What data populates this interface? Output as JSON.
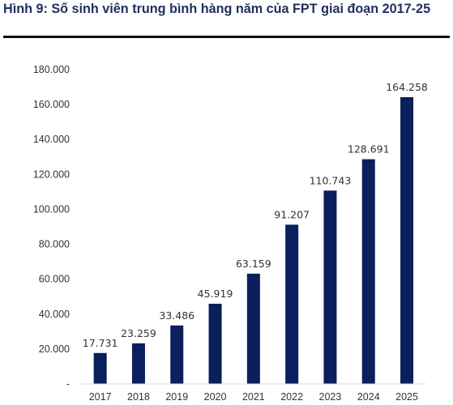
{
  "title": "Hình 9: Số sinh viên trung bình hàng năm của FPT giai đoạn 2017-25",
  "chart_data": {
    "type": "bar",
    "categories": [
      "2017",
      "2018",
      "2019",
      "2020",
      "2021",
      "2022",
      "2023",
      "2024",
      "2025"
    ],
    "values": [
      17731,
      23259,
      33486,
      45919,
      63159,
      91207,
      110743,
      128691,
      164258
    ],
    "data_labels": [
      "17.731",
      "23.259",
      "33.486",
      "45.919",
      "63.159",
      "91.207",
      "110.743",
      "128.691",
      "164.258"
    ],
    "y_ticks": [
      0,
      20000,
      40000,
      60000,
      80000,
      100000,
      120000,
      140000,
      160000,
      180000
    ],
    "y_tick_labels": [
      "-",
      "20.000",
      "40.000",
      "60.000",
      "80.000",
      "100.000",
      "120.000",
      "140.000",
      "160.000",
      "180.000"
    ],
    "ylim": [
      0,
      180000
    ],
    "xlabel": "",
    "ylabel": "",
    "grid": false,
    "legend": "none",
    "bar_color": "#0b1f5c"
  }
}
